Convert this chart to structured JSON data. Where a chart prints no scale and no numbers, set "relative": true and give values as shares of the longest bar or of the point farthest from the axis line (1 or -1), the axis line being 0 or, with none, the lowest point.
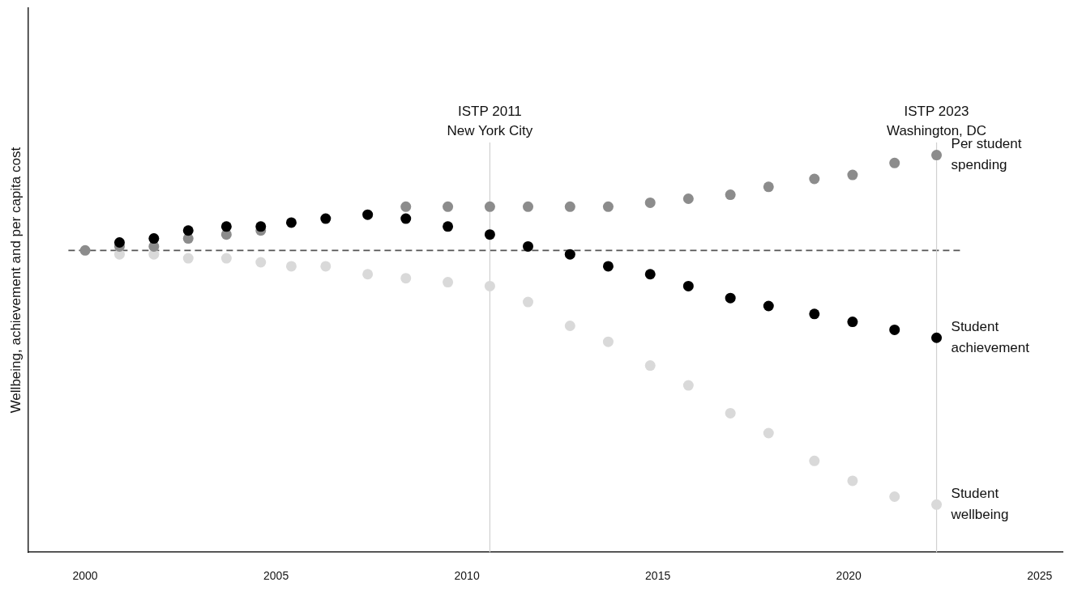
{
  "chart_data": {
    "type": "scatter",
    "ylabel": "Wellbeing, achievement and per capita cost",
    "relative": true,
    "marker": "circle",
    "grid": false,
    "legend": false,
    "x": [
      2000.0,
      2000.9,
      2001.8,
      2002.7,
      2003.7,
      2004.6,
      2005.4,
      2006.3,
      2007.4,
      2008.4,
      2009.5,
      2010.6,
      2011.6,
      2012.7,
      2013.7,
      2014.8,
      2015.8,
      2016.9,
      2017.9,
      2019.1,
      2020.1,
      2021.2,
      2022.3
    ],
    "xlim": [
      1998.5,
      2025.6
    ],
    "xticks": [
      2000,
      2005,
      2010,
      2015,
      2020,
      2025
    ],
    "series": [
      {
        "name": "Per student spending",
        "color": "#8c8c8c",
        "values": [
          0.76,
          0.77,
          0.77,
          0.79,
          0.8,
          0.81,
          null,
          null,
          null,
          0.87,
          0.87,
          0.87,
          0.87,
          0.87,
          0.87,
          0.88,
          0.89,
          0.9,
          0.92,
          0.94,
          0.95,
          0.98,
          1
        ]
      },
      {
        "name": "Student achievement",
        "color": "#000000",
        "values": [
          null,
          0.78,
          0.79,
          0.81,
          0.82,
          0.82,
          0.83,
          0.84,
          0.85,
          0.84,
          0.82,
          0.8,
          0.77,
          0.75,
          0.72,
          0.7,
          0.67,
          0.64,
          0.62,
          0.6,
          0.58,
          0.56,
          0.54
        ]
      },
      {
        "name": "Student wellbeing",
        "color": "#d9d9d9",
        "values": [
          null,
          0.75,
          0.75,
          0.74,
          0.74,
          0.73,
          0.72,
          0.72,
          0.7,
          0.69,
          0.68,
          0.67,
          0.63,
          0.57,
          0.53,
          0.47,
          0.42,
          0.35,
          0.3,
          0.23,
          0.18,
          0.14,
          0.12
        ]
      }
    ],
    "ref_lines": [
      {
        "axis": "y",
        "value": 0.76,
        "color": "#555555",
        "line_style": "dashed"
      },
      {
        "axis": "x",
        "value": 2010.6,
        "label": "ISTP 2011\nNew York City",
        "color": "#d0d0d0",
        "line_style": "solid"
      },
      {
        "axis": "x",
        "value": 2022.3,
        "label": "ISTP 2023\nWashington, DC",
        "color": "#d0d0d0",
        "line_style": "solid"
      }
    ]
  }
}
